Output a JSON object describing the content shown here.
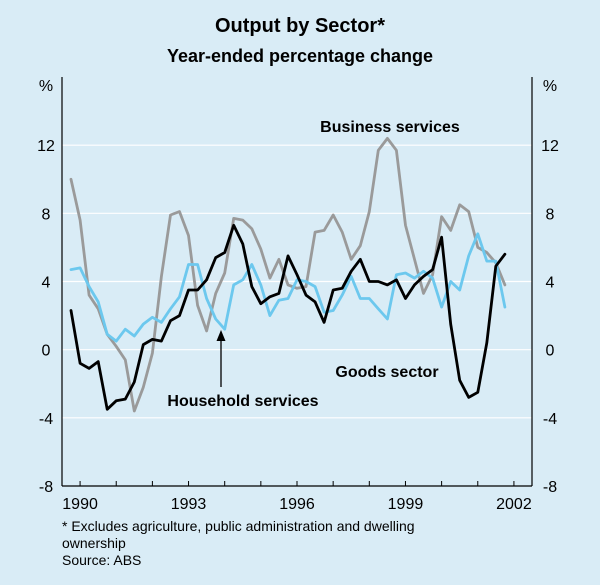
{
  "chart_data": {
    "type": "line",
    "title": "Output by Sector*",
    "subtitle": "Year-ended percentage change",
    "ylabel_left": "%",
    "ylabel_right": "%",
    "ylim": [
      -8,
      16
    ],
    "yticks": [
      -8,
      -4,
      0,
      4,
      8,
      12
    ],
    "xlim": [
      1989.5,
      2002.5
    ],
    "xticks": [
      1990,
      1993,
      1996,
      1999,
      2002
    ],
    "grid": "horizontal",
    "colors": {
      "background": "#d9ecf6",
      "gridline": "#ffffff",
      "axis": "#000000"
    },
    "series": [
      {
        "name": "Business services",
        "color": "#9a9a9a",
        "x": [
          1989.75,
          1990.0,
          1990.25,
          1990.5,
          1990.75,
          1991.0,
          1991.25,
          1991.5,
          1991.75,
          1992.0,
          1992.25,
          1992.5,
          1992.75,
          1993.0,
          1993.25,
          1993.5,
          1993.75,
          1994.0,
          1994.25,
          1994.5,
          1994.75,
          1995.0,
          1995.25,
          1995.5,
          1995.75,
          1996.0,
          1996.25,
          1996.5,
          1996.75,
          1997.0,
          1997.25,
          1997.5,
          1997.75,
          1998.0,
          1998.25,
          1998.5,
          1998.75,
          1999.0,
          1999.25,
          1999.5,
          1999.75,
          2000.0,
          2000.25,
          2000.5,
          2000.75,
          2001.0,
          2001.25,
          2001.5,
          2001.75
        ],
        "values": [
          10.0,
          7.6,
          3.2,
          2.4,
          0.9,
          0.2,
          -0.6,
          -3.6,
          -2.2,
          -0.2,
          4.3,
          7.9,
          8.1,
          6.7,
          2.6,
          1.1,
          3.3,
          4.5,
          7.7,
          7.6,
          7.1,
          5.9,
          4.2,
          5.3,
          3.8,
          3.6,
          3.7,
          6.9,
          7.0,
          7.9,
          6.9,
          5.3,
          6.1,
          8.1,
          11.7,
          12.4,
          11.7,
          7.3,
          5.3,
          3.3,
          4.4,
          7.8,
          7.0,
          8.5,
          8.1,
          6.0,
          5.7,
          5.1,
          3.8
        ]
      },
      {
        "name": "Household services",
        "color": "#6cc8ee",
        "x": [
          1989.75,
          1990.0,
          1990.25,
          1990.5,
          1990.75,
          1991.0,
          1991.25,
          1991.5,
          1991.75,
          1992.0,
          1992.25,
          1992.5,
          1992.75,
          1993.0,
          1993.25,
          1993.5,
          1993.75,
          1994.0,
          1994.25,
          1994.5,
          1994.75,
          1995.0,
          1995.25,
          1995.5,
          1995.75,
          1996.0,
          1996.25,
          1996.5,
          1996.75,
          1997.0,
          1997.25,
          1997.5,
          1997.75,
          1998.0,
          1998.25,
          1998.5,
          1998.75,
          1999.0,
          1999.25,
          1999.5,
          1999.75,
          2000.0,
          2000.25,
          2000.5,
          2000.75,
          2001.0,
          2001.25,
          2001.5,
          2001.75
        ],
        "values": [
          4.7,
          4.8,
          3.7,
          2.8,
          0.9,
          0.5,
          1.2,
          0.8,
          1.5,
          1.9,
          1.6,
          2.4,
          3.1,
          5.0,
          5.0,
          3.0,
          1.8,
          1.2,
          3.8,
          4.1,
          5.0,
          3.8,
          2.0,
          2.9,
          3.0,
          4.1,
          4.0,
          3.7,
          2.2,
          2.3,
          3.2,
          4.3,
          3.0,
          3.0,
          2.4,
          1.8,
          4.4,
          4.5,
          4.2,
          4.6,
          4.2,
          2.5,
          4.0,
          3.5,
          5.5,
          6.8,
          5.2,
          5.2,
          2.5
        ]
      },
      {
        "name": "Goods sector",
        "color": "#000000",
        "x": [
          1989.75,
          1990.0,
          1990.25,
          1990.5,
          1990.75,
          1991.0,
          1991.25,
          1991.5,
          1991.75,
          1992.0,
          1992.25,
          1992.5,
          1992.75,
          1993.0,
          1993.25,
          1993.5,
          1993.75,
          1994.0,
          1994.25,
          1994.5,
          1994.75,
          1995.0,
          1995.25,
          1995.5,
          1995.75,
          1996.0,
          1996.25,
          1996.5,
          1996.75,
          1997.0,
          1997.25,
          1997.5,
          1997.75,
          1998.0,
          1998.25,
          1998.5,
          1998.75,
          1999.0,
          1999.25,
          1999.5,
          1999.75,
          2000.0,
          2000.25,
          2000.5,
          2000.75,
          2001.0,
          2001.25,
          2001.5,
          2001.75
        ],
        "values": [
          2.3,
          -0.8,
          -1.1,
          -0.7,
          -3.5,
          -3.0,
          -2.9,
          -1.9,
          0.3,
          0.6,
          0.5,
          1.7,
          2.0,
          3.5,
          3.5,
          4.1,
          5.4,
          5.7,
          7.3,
          6.2,
          3.7,
          2.7,
          3.1,
          3.3,
          5.5,
          4.4,
          3.2,
          2.8,
          1.6,
          3.5,
          3.6,
          4.6,
          5.3,
          4.0,
          4.0,
          3.8,
          4.1,
          3.0,
          3.8,
          4.3,
          4.7,
          6.6,
          1.5,
          -1.8,
          -2.8,
          -2.5,
          0.4,
          4.9,
          5.6
        ]
      }
    ],
    "annotations": [
      {
        "text": "Business services",
        "series": "Business services"
      },
      {
        "text": "Household services",
        "series": "Household services",
        "arrow": true
      },
      {
        "text": "Goods sector",
        "series": "Goods sector"
      }
    ],
    "footnote": "*    Excludes agriculture, public administration and dwelling ownership",
    "source": "Source: ABS"
  }
}
